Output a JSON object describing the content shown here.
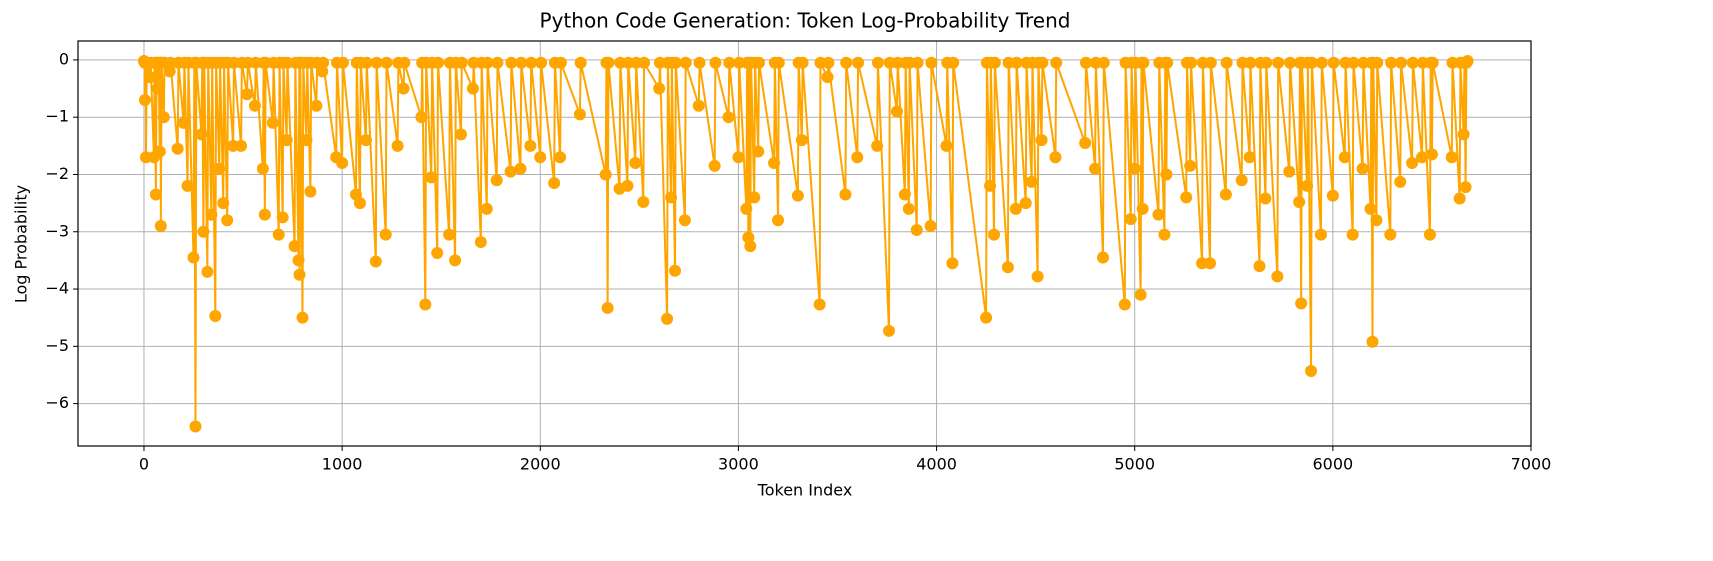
{
  "chart_data": {
    "type": "line",
    "title": "Python Code Generation: Token Log-Probability Trend",
    "x_label": "Token Index",
    "y_label": "Log Probability",
    "color": "#ffa500",
    "grid": true,
    "xlim": [
      -333,
      7000
    ],
    "ylim": [
      -6.74,
      0.33
    ],
    "xticks": [
      0,
      1000,
      2000,
      3000,
      4000,
      5000,
      6000,
      7000
    ],
    "yticks": [
      {
        "value": -6,
        "label": "−6"
      },
      {
        "value": -5,
        "label": "−5"
      },
      {
        "value": -4,
        "label": "−4"
      },
      {
        "value": -3,
        "label": "−3"
      },
      {
        "value": -2,
        "label": "−2"
      },
      {
        "value": -1,
        "label": "−1"
      },
      0
    ],
    "x": [
      0,
      4,
      5,
      9,
      10,
      14,
      30,
      34,
      50,
      54,
      60,
      64,
      70,
      74,
      80,
      84,
      85,
      89,
      100,
      104,
      130,
      134,
      170,
      174,
      200,
      204,
      220,
      224,
      250,
      254,
      260,
      264,
      290,
      294,
      300,
      304,
      320,
      324,
      340,
      344,
      360,
      364,
      380,
      384,
      400,
      404,
      420,
      424,
      450,
      454,
      490,
      494,
      520,
      524,
      560,
      564,
      600,
      604,
      610,
      614,
      650,
      654,
      680,
      684,
      700,
      704,
      720,
      724,
      760,
      764,
      780,
      784,
      785,
      789,
      800,
      804,
      820,
      824,
      840,
      844,
      870,
      874,
      900,
      904,
      970,
      974,
      1000,
      1004,
      1070,
      1074,
      1090,
      1094,
      1120,
      1124,
      1170,
      1174,
      1220,
      1224,
      1280,
      1284,
      1310,
      1314,
      1400,
      1404,
      1420,
      1424,
      1450,
      1454,
      1480,
      1484,
      1540,
      1544,
      1570,
      1574,
      1600,
      1604,
      1660,
      1664,
      1700,
      1704,
      1730,
      1734,
      1780,
      1784,
      1850,
      1854,
      1900,
      1904,
      1950,
      1954,
      2000,
      2004,
      2070,
      2074,
      2100,
      2104,
      2200,
      2204,
      2330,
      2334,
      2340,
      2344,
      2400,
      2404,
      2440,
      2444,
      2480,
      2484,
      2520,
      2524,
      2600,
      2604,
      2640,
      2644,
      2660,
      2664,
      2680,
      2684,
      2730,
      2734,
      2800,
      2804,
      2880,
      2884,
      2950,
      2954,
      3000,
      3004,
      3040,
      3044,
      3050,
      3054,
      3060,
      3064,
      3080,
      3084,
      3100,
      3104,
      3180,
      3184,
      3200,
      3204,
      3300,
      3304,
      3320,
      3324,
      3410,
      3414,
      3450,
      3454,
      3540,
      3544,
      3600,
      3604,
      3700,
      3704,
      3760,
      3764,
      3800,
      3804,
      3840,
      3844,
      3860,
      3864,
      3900,
      3904,
      3970,
      3974,
      4050,
      4054,
      4080,
      4084,
      4250,
      4254,
      4270,
      4274,
      4290,
      4294,
      4360,
      4364,
      4400,
      4404,
      4450,
      4454,
      4480,
      4484,
      4510,
      4514,
      4530,
      4534,
      4600,
      4604,
      4750,
      4754,
      4800,
      4804,
      4840,
      4844,
      4950,
      4954,
      4980,
      4984,
      5000,
      5004,
      5030,
      5034,
      5040,
      5044,
      5120,
      5124,
      5150,
      5154,
      5160,
      5164,
      5260,
      5264,
      5280,
      5284,
      5340,
      5344,
      5380,
      5384,
      5460,
      5464,
      5540,
      5544,
      5580,
      5584,
      5630,
      5634,
      5660,
      5664,
      5720,
      5724,
      5780,
      5784,
      5830,
      5834,
      5840,
      5844,
      5870,
      5874,
      5890,
      5894,
      5940,
      5944,
      6000,
      6004,
      6060,
      6064,
      6100,
      6104,
      6150,
      6154,
      6190,
      6194,
      6200,
      6204,
      6220,
      6224,
      6290,
      6294,
      6340,
      6344,
      6400,
      6404,
      6450,
      6454,
      6490,
      6494,
      6500,
      6504,
      6600,
      6604,
      6640,
      6644,
      6660,
      6664,
      6670,
      6674,
      6680
    ],
    "values": [
      -0.02,
      -0.05,
      -0.7,
      -0.05,
      -1.7,
      -0.05,
      -0.3,
      -0.05,
      -1.7,
      -0.05,
      -2.35,
      -0.05,
      -0.5,
      -0.05,
      -1.6,
      -0.05,
      -2.9,
      -0.05,
      -1.0,
      -0.05,
      -0.2,
      -0.05,
      -1.55,
      -0.05,
      -1.1,
      -0.05,
      -2.2,
      -0.05,
      -3.45,
      -0.05,
      -6.4,
      -0.05,
      -1.3,
      -0.05,
      -3.0,
      -0.05,
      -3.7,
      -0.05,
      -2.7,
      -0.05,
      -4.47,
      -0.05,
      -1.9,
      -0.05,
      -2.5,
      -0.05,
      -2.8,
      -0.05,
      -1.5,
      -0.05,
      -1.5,
      -0.05,
      -0.6,
      -0.05,
      -0.8,
      -0.05,
      -1.9,
      -0.05,
      -2.7,
      -0.05,
      -1.1,
      -0.05,
      -3.05,
      -0.05,
      -2.75,
      -0.05,
      -1.4,
      -0.05,
      -3.25,
      -0.05,
      -3.5,
      -0.05,
      -3.75,
      -0.05,
      -4.5,
      -0.05,
      -1.4,
      -0.05,
      -2.3,
      -0.05,
      -0.8,
      -0.05,
      -0.2,
      -0.05,
      -1.7,
      -0.05,
      -1.8,
      -0.05,
      -2.35,
      -0.05,
      -2.5,
      -0.05,
      -1.4,
      -0.05,
      -3.52,
      -0.05,
      -3.05,
      -0.05,
      -1.5,
      -0.05,
      -0.5,
      -0.05,
      -1.0,
      -0.05,
      -4.27,
      -0.05,
      -2.05,
      -0.05,
      -3.37,
      -0.05,
      -3.05,
      -0.05,
      -3.5,
      -0.05,
      -1.3,
      -0.05,
      -0.5,
      -0.05,
      -3.18,
      -0.05,
      -2.6,
      -0.05,
      -2.1,
      -0.05,
      -1.95,
      -0.05,
      -1.9,
      -0.05,
      -1.5,
      -0.05,
      -1.7,
      -0.05,
      -2.15,
      -0.05,
      -1.7,
      -0.05,
      -0.95,
      -0.05,
      -2.0,
      -0.05,
      -4.33,
      -0.05,
      -2.25,
      -0.05,
      -2.2,
      -0.05,
      -1.8,
      -0.05,
      -2.48,
      -0.05,
      -0.5,
      -0.05,
      -4.52,
      -0.05,
      -2.4,
      -0.05,
      -3.68,
      -0.05,
      -2.8,
      -0.05,
      -0.8,
      -0.05,
      -1.85,
      -0.05,
      -1.0,
      -0.05,
      -1.7,
      -0.05,
      -2.6,
      -0.05,
      -3.1,
      -0.05,
      -3.25,
      -0.05,
      -2.4,
      -0.05,
      -1.6,
      -0.05,
      -1.8,
      -0.05,
      -2.8,
      -0.05,
      -2.37,
      -0.05,
      -1.4,
      -0.05,
      -4.27,
      -0.05,
      -0.3,
      -0.05,
      -2.35,
      -0.05,
      -1.7,
      -0.05,
      -1.5,
      -0.05,
      -4.73,
      -0.05,
      -0.9,
      -0.05,
      -2.35,
      -0.05,
      -2.6,
      -0.05,
      -2.97,
      -0.05,
      -2.9,
      -0.05,
      -1.5,
      -0.05,
      -3.55,
      -0.05,
      -4.5,
      -0.05,
      -2.2,
      -0.05,
      -3.05,
      -0.05,
      -3.62,
      -0.05,
      -2.6,
      -0.05,
      -2.5,
      -0.05,
      -2.13,
      -0.05,
      -3.78,
      -0.05,
      -1.4,
      -0.05,
      -1.7,
      -0.05,
      -1.45,
      -0.05,
      -1.9,
      -0.05,
      -3.45,
      -0.05,
      -4.27,
      -0.05,
      -2.78,
      -0.05,
      -1.9,
      -0.05,
      -4.1,
      -0.05,
      -2.6,
      -0.05,
      -2.7,
      -0.05,
      -3.05,
      -0.05,
      -2.0,
      -0.05,
      -2.4,
      -0.05,
      -1.85,
      -0.05,
      -3.55,
      -0.05,
      -3.55,
      -0.05,
      -2.35,
      -0.05,
      -2.1,
      -0.05,
      -1.7,
      -0.05,
      -3.6,
      -0.05,
      -2.42,
      -0.05,
      -3.78,
      -0.05,
      -1.95,
      -0.05,
      -2.48,
      -0.05,
      -4.25,
      -0.05,
      -2.2,
      -0.05,
      -5.43,
      -0.05,
      -3.05,
      -0.05,
      -2.37,
      -0.05,
      -1.7,
      -0.05,
      -3.05,
      -0.05,
      -1.9,
      -0.05,
      -2.6,
      -0.05,
      -4.92,
      -0.05,
      -2.8,
      -0.05,
      -3.05,
      -0.05,
      -2.13,
      -0.05,
      -1.8,
      -0.05,
      -1.7,
      -0.05,
      -3.05,
      -0.05,
      -1.65,
      -0.05,
      -1.7,
      -0.05,
      -2.42,
      -0.05,
      -1.3,
      -0.05,
      -2.22,
      -0.05,
      -0.02
    ]
  }
}
